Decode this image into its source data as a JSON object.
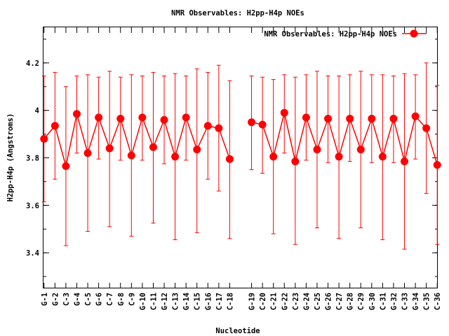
{
  "chart_data": {
    "type": "line",
    "title": "NMR Observables: H2pp-H4p NOEs",
    "xlabel": "Nucleotide",
    "ylabel": "H2pp-H4p (Angstroms)",
    "ylim": [
      3.25,
      4.35
    ],
    "yticks": [
      "3.4",
      "3.6",
      "3.8",
      "4",
      "4.2"
    ],
    "ytick_values": [
      3.4,
      3.6,
      3.8,
      4.0,
      4.2
    ],
    "grid": false,
    "legend_position": "top-right",
    "categories": [
      "G-1",
      "G-2",
      "C-3",
      "G-4",
      "C-5",
      "G-6",
      "C-7",
      "G-8",
      "C-9",
      "G-10",
      "C-11",
      "G-12",
      "C-13",
      "G-14",
      "C-15",
      "G-16",
      "C-17",
      "C-18",
      "G-19",
      "C-20",
      "C-21",
      "G-22",
      "C-23",
      "G-24",
      "C-25",
      "G-26",
      "C-27",
      "G-28",
      "C-29",
      "G-30",
      "C-31",
      "G-32",
      "C-33",
      "G-34",
      "C-35",
      "C-36"
    ],
    "x": [
      1,
      2,
      3,
      4,
      5,
      6,
      7,
      8,
      9,
      10,
      11,
      12,
      13,
      14,
      15,
      16,
      17,
      18,
      20,
      21,
      22,
      23,
      24,
      25,
      26,
      27,
      28,
      29,
      30,
      31,
      32,
      33,
      34,
      35,
      36,
      37
    ],
    "xlim": [
      0.95,
      37.05
    ],
    "series": [
      {
        "name": "NMR Observables: H2pp-H4p NOEs",
        "color": "#ff0000",
        "values": [
          3.88,
          3.935,
          3.765,
          3.985,
          3.82,
          3.97,
          3.84,
          3.965,
          3.81,
          3.97,
          3.845,
          3.96,
          3.805,
          3.97,
          3.835,
          3.935,
          3.925,
          3.795,
          3.95,
          3.94,
          3.805,
          3.99,
          3.785,
          3.97,
          3.835,
          3.965,
          3.805,
          3.965,
          3.835,
          3.965,
          3.805,
          3.965,
          3.785,
          3.975,
          3.925,
          3.77
        ],
        "err_low": [
          3.615,
          3.71,
          3.43,
          3.82,
          3.49,
          3.795,
          3.51,
          3.79,
          3.47,
          3.79,
          3.525,
          3.775,
          3.455,
          3.79,
          3.485,
          3.71,
          3.66,
          3.46,
          3.75,
          3.735,
          3.48,
          3.82,
          3.435,
          3.79,
          3.505,
          3.78,
          3.46,
          3.785,
          3.505,
          3.78,
          3.455,
          3.78,
          3.415,
          3.795,
          3.65,
          3.435
        ],
        "err_high": [
          4.145,
          4.16,
          4.1,
          4.145,
          4.15,
          4.14,
          4.165,
          4.14,
          4.15,
          4.145,
          4.16,
          4.145,
          4.155,
          4.145,
          4.175,
          4.16,
          4.19,
          4.125,
          4.145,
          4.14,
          4.13,
          4.15,
          4.14,
          4.15,
          4.165,
          4.145,
          4.145,
          4.15,
          4.165,
          4.15,
          4.15,
          4.145,
          4.155,
          4.15,
          4.2,
          4.105
        ]
      }
    ]
  }
}
